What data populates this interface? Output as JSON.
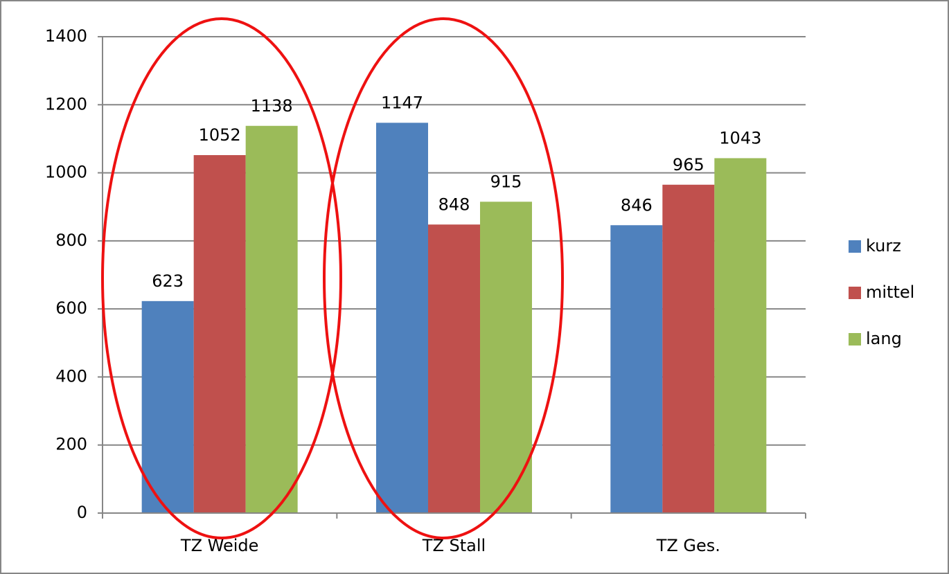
{
  "chart_data": {
    "type": "bar",
    "categories": [
      "TZ Weide",
      "TZ Stall",
      "TZ Ges."
    ],
    "series": [
      {
        "name": "kurz",
        "color": "#4f81bd",
        "values": [
          623,
          1147,
          846
        ]
      },
      {
        "name": "mittel",
        "color": "#c0504d",
        "values": [
          1052,
          848,
          965
        ]
      },
      {
        "name": "lang",
        "color": "#9bbb59",
        "values": [
          1138,
          915,
          1043
        ]
      }
    ],
    "ylim": [
      0,
      1400
    ],
    "yticks": [
      0,
      200,
      400,
      600,
      800,
      1000,
      1200,
      1400
    ],
    "grid": true,
    "legend": "right"
  }
}
